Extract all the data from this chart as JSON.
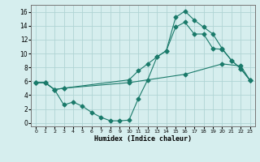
{
  "xlabel": "Humidex (Indice chaleur)",
  "background_color": "#d6eeee",
  "grid_color": "#b0d4d4",
  "line_color": "#1a7a6a",
  "xlim": [
    -0.5,
    23.5
  ],
  "ylim": [
    -0.5,
    17.0
  ],
  "xticks": [
    0,
    1,
    2,
    3,
    4,
    5,
    6,
    7,
    8,
    9,
    10,
    11,
    12,
    13,
    14,
    15,
    16,
    17,
    18,
    19,
    20,
    21,
    22,
    23
  ],
  "yticks": [
    0,
    2,
    4,
    6,
    8,
    10,
    12,
    14,
    16
  ],
  "line1_x": [
    0,
    1,
    2,
    3,
    10,
    16,
    20,
    22,
    23
  ],
  "line1_y": [
    5.8,
    5.8,
    4.8,
    5.0,
    5.8,
    7.0,
    8.5,
    8.2,
    6.1
  ],
  "line2_x": [
    0,
    1,
    2,
    3,
    4,
    5,
    6,
    7,
    8,
    9,
    10,
    11,
    12,
    13,
    14,
    15,
    16,
    17,
    18,
    19,
    20,
    21,
    22,
    23
  ],
  "line2_y": [
    5.8,
    5.8,
    4.8,
    2.6,
    3.0,
    2.4,
    1.5,
    0.8,
    0.3,
    0.3,
    0.4,
    3.5,
    6.2,
    9.5,
    10.4,
    15.2,
    16.1,
    14.8,
    13.8,
    12.8,
    10.7,
    9.0,
    7.8,
    6.1
  ],
  "line3_x": [
    0,
    1,
    2,
    3,
    10,
    11,
    12,
    13,
    14,
    15,
    16,
    17,
    18,
    19,
    20,
    21,
    22,
    23
  ],
  "line3_y": [
    5.8,
    5.8,
    4.8,
    5.0,
    6.2,
    7.5,
    8.5,
    9.5,
    10.4,
    13.8,
    14.5,
    12.8,
    12.8,
    10.7,
    10.6,
    9.0,
    7.8,
    6.1
  ]
}
